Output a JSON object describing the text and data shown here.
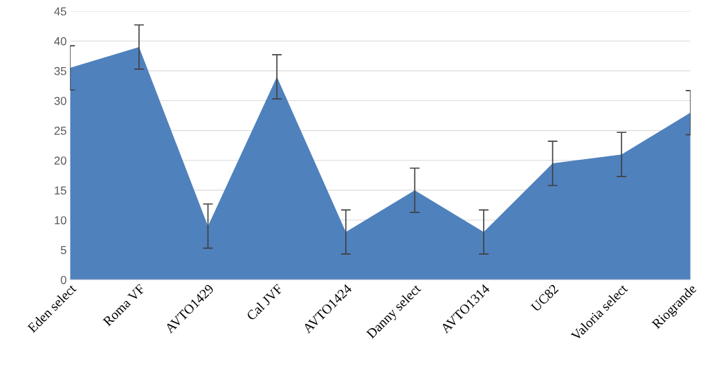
{
  "chart_data": {
    "type": "area",
    "categories": [
      "Eden select",
      "Roma VF",
      "AVTO1429",
      "Cal JVF",
      "AVTO1424",
      "Danny select",
      "AVTO1314",
      "UC82",
      "Valoria select",
      "Riogrande"
    ],
    "series": [
      {
        "color": "#4f81bd",
        "values": [
          35.5,
          39,
          9,
          34,
          8,
          15,
          8,
          19.5,
          21,
          28
        ],
        "errors": [
          3.7,
          3.7,
          3.7,
          3.7,
          3.7,
          3.7,
          3.7,
          3.7,
          3.7,
          3.7
        ]
      }
    ],
    "ylim": [
      0,
      45
    ],
    "yticks": [
      0,
      5,
      10,
      15,
      20,
      25,
      30,
      35,
      40,
      45
    ],
    "grid": "y"
  }
}
